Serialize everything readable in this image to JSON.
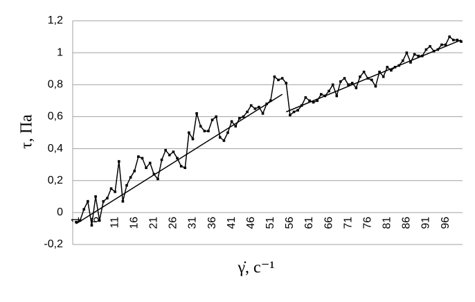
{
  "chart_data": {
    "type": "line",
    "y_label": "τ, Па",
    "x_label": "γ̇, c⁻¹",
    "categories": [
      "1",
      null,
      null,
      null,
      null,
      "6",
      null,
      null,
      null,
      null,
      "11",
      null,
      null,
      null,
      null,
      "16",
      null,
      null,
      null,
      null,
      "21",
      null,
      null,
      null,
      null,
      "26",
      null,
      null,
      null,
      null,
      "31",
      null,
      null,
      null,
      null,
      "36",
      null,
      null,
      null,
      null,
      "41",
      null,
      null,
      null,
      null,
      "46",
      null,
      null,
      null,
      null,
      "51",
      null,
      null,
      null,
      null,
      "56",
      null,
      null,
      null,
      null,
      "61",
      null,
      null,
      null,
      null,
      "66",
      null,
      null,
      null,
      null,
      "71",
      null,
      null,
      null,
      null,
      "76",
      null,
      null,
      null,
      null,
      "81",
      null,
      null,
      null,
      null,
      "86",
      null,
      null,
      null,
      null,
      "91",
      null,
      null,
      null,
      null,
      "96",
      null,
      null,
      null,
      null
    ],
    "values": [
      -0.06,
      -0.05,
      0.02,
      0.07,
      -0.08,
      0.1,
      -0.05,
      0.07,
      0.09,
      0.15,
      0.13,
      0.32,
      0.07,
      0.17,
      0.22,
      0.26,
      0.35,
      0.34,
      0.28,
      0.31,
      0.24,
      0.21,
      0.33,
      0.39,
      0.36,
      0.38,
      0.34,
      0.29,
      0.28,
      0.5,
      0.46,
      0.62,
      0.54,
      0.51,
      0.51,
      0.58,
      0.6,
      0.47,
      0.45,
      0.5,
      0.57,
      0.54,
      0.59,
      0.6,
      0.63,
      0.67,
      0.65,
      0.66,
      0.62,
      0.68,
      0.7,
      0.85,
      0.83,
      0.84,
      0.81,
      0.61,
      0.63,
      0.64,
      0.67,
      0.72,
      0.7,
      0.69,
      0.7,
      0.74,
      0.73,
      0.76,
      0.8,
      0.73,
      0.82,
      0.84,
      0.8,
      0.81,
      0.78,
      0.85,
      0.88,
      0.84,
      0.83,
      0.79,
      0.88,
      0.85,
      0.91,
      0.89,
      0.91,
      0.92,
      0.95,
      1.0,
      0.94,
      0.99,
      0.98,
      0.98,
      1.02,
      1.04,
      1.01,
      1.02,
      1.05,
      1.05,
      1.1,
      1.08,
      1.08,
      1.07
    ],
    "color": "#000000",
    "trendlines": [
      {
        "x": [
          1,
          54
        ],
        "values": [
          -0.07,
          0.74
        ]
      },
      {
        "x": [
          55,
          100
        ],
        "values": [
          0.63,
          1.08
        ]
      }
    ],
    "ylim": [
      -0.2,
      1.2
    ],
    "yticks": [
      {
        "value": -0.2,
        "label": "-0,2"
      },
      0,
      {
        "value": 0.2,
        "label": "0,2"
      },
      {
        "value": 0.4,
        "label": "0,4"
      },
      {
        "value": 0.6,
        "label": "0,6"
      },
      {
        "value": 0.8,
        "label": "0,8"
      },
      1,
      {
        "value": 1.2,
        "label": "1,2"
      }
    ],
    "grid": true
  }
}
